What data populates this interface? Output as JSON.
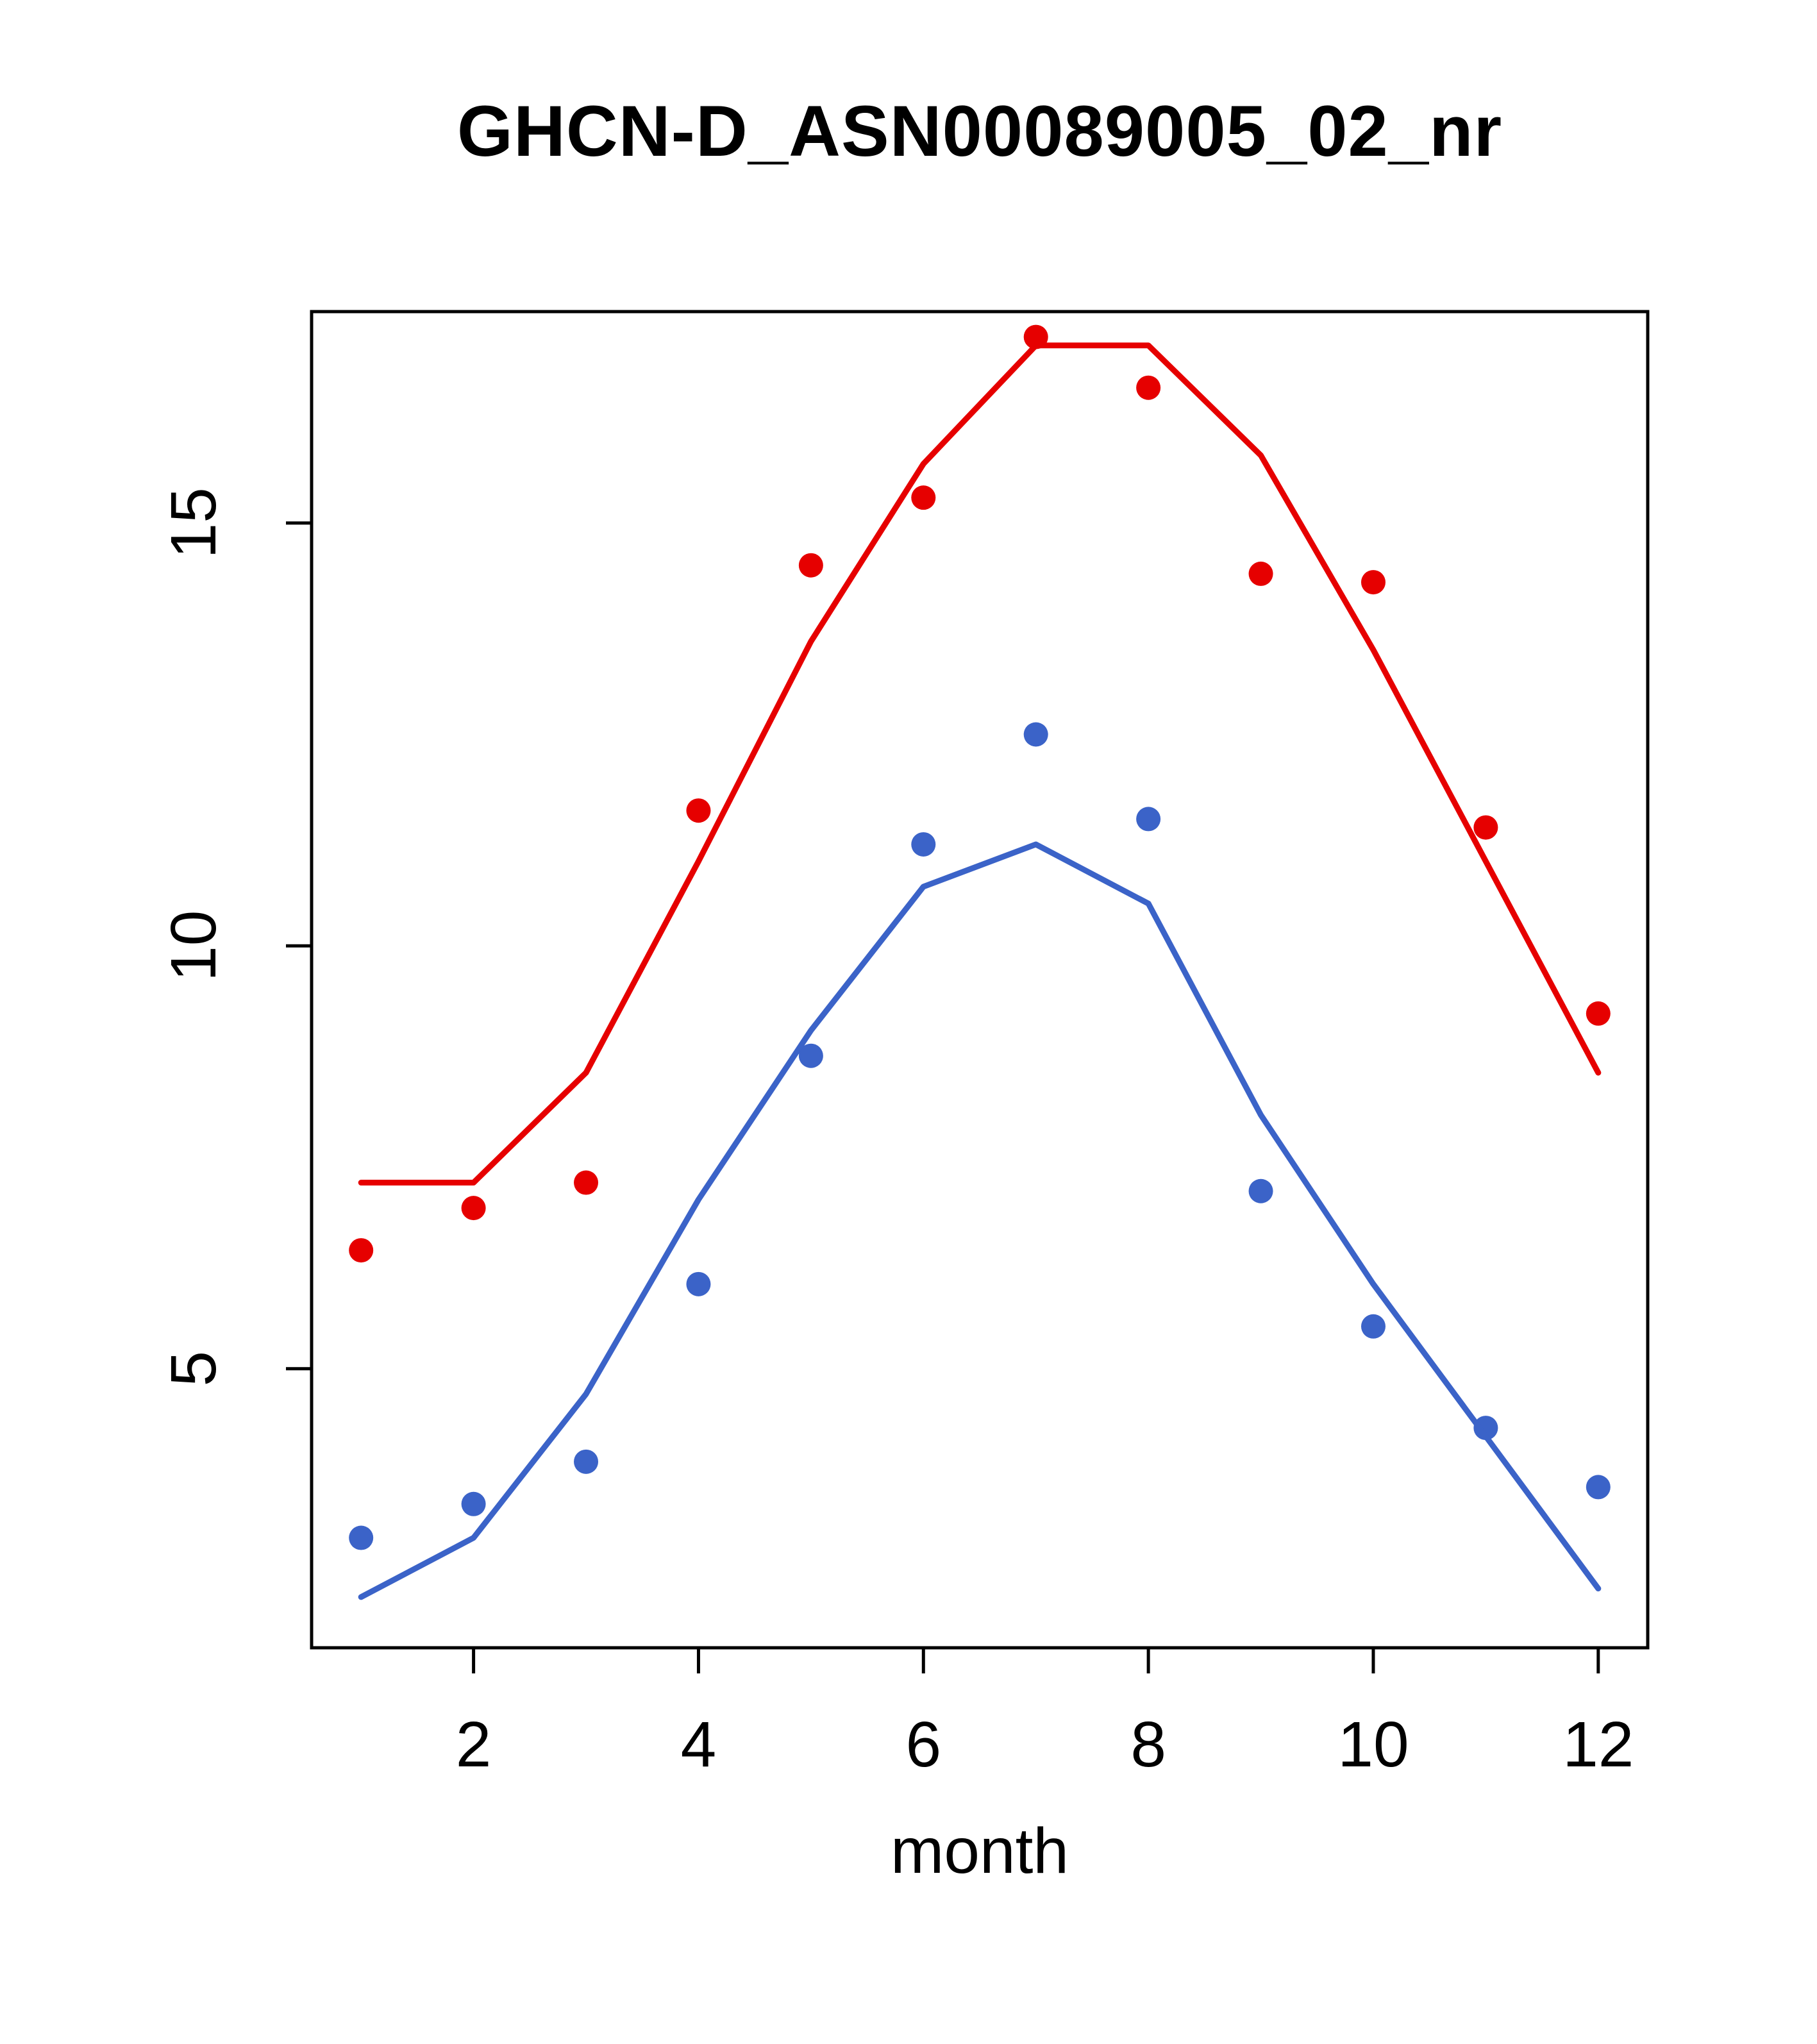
{
  "chart_data": {
    "type": "scatter+line",
    "title": "GHCN-D_ASN00089005_02_nr",
    "xlabel": "month",
    "ylabel": "",
    "x": [
      1,
      2,
      3,
      4,
      5,
      6,
      7,
      8,
      9,
      10,
      11,
      12
    ],
    "xlim": [
      0.56,
      12.44
    ],
    "ylim": [
      1.7,
      17.5
    ],
    "xticks": [
      2,
      4,
      6,
      8,
      10,
      12
    ],
    "yticks": [
      5,
      10,
      15
    ],
    "grid": "off",
    "legend": "none",
    "colors": {
      "red": "#e60000",
      "blue": "#3b63c8"
    },
    "series": [
      {
        "name": "red-observed-points",
        "kind": "points",
        "color": "#e60000",
        "values": [
          6.4,
          6.9,
          7.2,
          11.6,
          14.5,
          15.3,
          17.2,
          16.6,
          14.4,
          14.3,
          11.4,
          9.2
        ]
      },
      {
        "name": "red-fitted-line",
        "kind": "line",
        "color": "#e60000",
        "values": [
          7.2,
          7.2,
          8.5,
          11.0,
          13.6,
          15.7,
          17.1,
          17.1,
          15.8,
          13.5,
          11.0,
          8.5
        ]
      },
      {
        "name": "blue-observed-points",
        "kind": "points",
        "color": "#3b63c8",
        "values": [
          3.0,
          3.4,
          3.9,
          6.0,
          8.7,
          11.2,
          12.5,
          11.5,
          7.1,
          5.5,
          4.3,
          3.6
        ]
      },
      {
        "name": "blue-fitted-line",
        "kind": "line",
        "color": "#3b63c8",
        "values": [
          2.3,
          3.0,
          4.7,
          7.0,
          9.0,
          10.7,
          11.2,
          10.5,
          8.0,
          6.0,
          4.2,
          2.4
        ]
      }
    ]
  }
}
